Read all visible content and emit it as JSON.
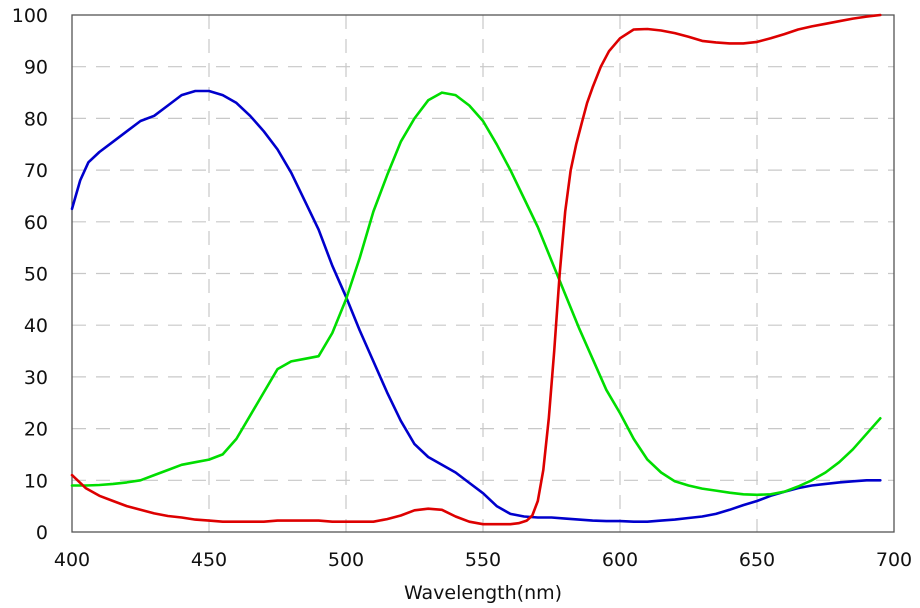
{
  "chart_data": {
    "type": "line",
    "title": "",
    "xlabel": "Wavelength(nm)",
    "ylabel": "",
    "xlim": [
      400,
      700
    ],
    "ylim": [
      0,
      100
    ],
    "xticks": [
      400,
      450,
      500,
      550,
      600,
      650,
      700
    ],
    "yticks": [
      0,
      10,
      20,
      30,
      40,
      50,
      60,
      70,
      80,
      90,
      100
    ],
    "grid": true,
    "legend": "none",
    "series": [
      {
        "color": "#0000cc",
        "x": [
          400,
          403,
          406,
          410,
          415,
          420,
          425,
          430,
          435,
          440,
          445,
          450,
          455,
          460,
          465,
          470,
          475,
          480,
          485,
          490,
          495,
          500,
          505,
          510,
          515,
          520,
          525,
          530,
          535,
          540,
          545,
          550,
          555,
          560,
          565,
          570,
          575,
          580,
          585,
          590,
          595,
          600,
          605,
          610,
          615,
          620,
          625,
          630,
          635,
          640,
          645,
          650,
          655,
          660,
          665,
          670,
          675,
          680,
          685,
          690,
          695
        ],
        "y": [
          62.5,
          68,
          71.5,
          73.5,
          75.5,
          77.5,
          79.5,
          80.5,
          82.5,
          84.5,
          85.3,
          85.3,
          84.5,
          83,
          80.5,
          77.5,
          74,
          69.5,
          64,
          58.5,
          51.5,
          45.5,
          39,
          33,
          27,
          21.5,
          17,
          14.5,
          13,
          11.5,
          9.5,
          7.5,
          5,
          3.5,
          3,
          2.8,
          2.8,
          2.6,
          2.4,
          2.2,
          2.1,
          2.1,
          2.0,
          2.0,
          2.2,
          2.4,
          2.7,
          3.0,
          3.5,
          4.3,
          5.2,
          6.0,
          7.0,
          7.8,
          8.5,
          9.0,
          9.3,
          9.6,
          9.8,
          10.0,
          10.0
        ]
      },
      {
        "color": "#00dd00",
        "x": [
          400,
          405,
          410,
          415,
          420,
          425,
          430,
          435,
          440,
          445,
          450,
          455,
          460,
          465,
          470,
          475,
          480,
          485,
          490,
          495,
          500,
          505,
          510,
          515,
          520,
          525,
          530,
          535,
          540,
          545,
          550,
          555,
          560,
          565,
          570,
          575,
          580,
          585,
          590,
          595,
          600,
          605,
          610,
          615,
          620,
          625,
          630,
          635,
          640,
          645,
          650,
          655,
          660,
          665,
          670,
          675,
          680,
          685,
          690,
          695
        ],
        "y": [
          9.0,
          9.0,
          9.1,
          9.3,
          9.6,
          10.0,
          11.0,
          12.0,
          13.0,
          13.5,
          14.0,
          15.0,
          18.0,
          22.5,
          27.0,
          31.5,
          33.0,
          33.5,
          34.0,
          38.5,
          45.0,
          53.0,
          62.0,
          69.0,
          75.5,
          80.0,
          83.5,
          85.0,
          84.5,
          82.5,
          79.5,
          75.0,
          70.0,
          64.5,
          59.0,
          52.5,
          46.0,
          39.5,
          33.5,
          27.5,
          23.0,
          18.0,
          14.0,
          11.5,
          9.8,
          9.0,
          8.4,
          8.0,
          7.6,
          7.3,
          7.2,
          7.3,
          7.8,
          8.8,
          10.0,
          11.5,
          13.5,
          16.0,
          19.0,
          22.0
        ]
      },
      {
        "color": "#dd0000",
        "x": [
          400,
          405,
          410,
          415,
          420,
          425,
          430,
          435,
          440,
          445,
          450,
          455,
          460,
          465,
          470,
          475,
          480,
          485,
          490,
          495,
          500,
          505,
          510,
          515,
          520,
          525,
          530,
          535,
          540,
          545,
          550,
          555,
          560,
          563,
          566,
          568,
          570,
          572,
          574,
          576,
          578,
          580,
          582,
          584,
          586,
          588,
          590,
          593,
          596,
          600,
          605,
          610,
          615,
          620,
          625,
          630,
          635,
          640,
          645,
          650,
          655,
          660,
          665,
          670,
          675,
          680,
          685,
          690,
          695
        ],
        "y": [
          11.0,
          8.5,
          7.0,
          6.0,
          5.0,
          4.3,
          3.6,
          3.1,
          2.8,
          2.4,
          2.2,
          2.0,
          2.0,
          2.0,
          2.0,
          2.2,
          2.2,
          2.2,
          2.2,
          2.0,
          2.0,
          2.0,
          2.0,
          2.5,
          3.2,
          4.2,
          4.5,
          4.3,
          3.0,
          2.0,
          1.5,
          1.5,
          1.5,
          1.7,
          2.2,
          3.2,
          6.0,
          12.0,
          22.0,
          35.0,
          50.0,
          62.0,
          70.0,
          75.0,
          79.0,
          83.0,
          86.0,
          90.0,
          93.0,
          95.5,
          97.2,
          97.3,
          97.0,
          96.5,
          95.8,
          95.0,
          94.7,
          94.5,
          94.5,
          94.8,
          95.5,
          96.3,
          97.2,
          97.8,
          98.3,
          98.8,
          99.3,
          99.7,
          100.0
        ]
      }
    ]
  }
}
